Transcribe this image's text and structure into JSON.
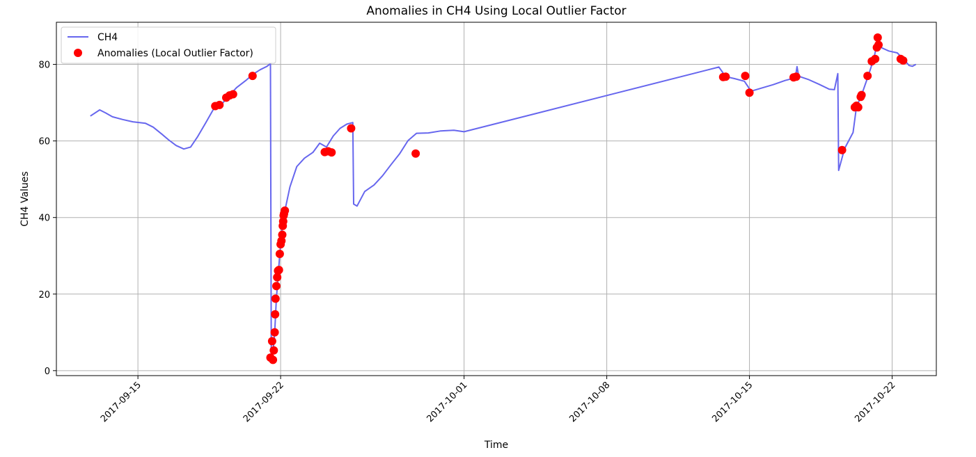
{
  "chart_data": {
    "type": "line",
    "title": "Anomalies in CH4 Using Local Outlier Factor",
    "xlabel": "Time",
    "ylabel": "CH4 Values",
    "xlim": [
      "2017-09-11T00:00",
      "2017-10-24T04:00"
    ],
    "ylim": [
      -1.3,
      91
    ],
    "x_ticks": [
      "2017-09-15",
      "2017-09-22",
      "2017-10-01",
      "2017-10-08",
      "2017-10-15",
      "2017-10-22"
    ],
    "y_ticks": [
      0,
      20,
      40,
      60,
      80
    ],
    "grid": true,
    "legend_position": "top-left",
    "colors": {
      "line": "#6666ee",
      "anomaly": "#ff0000"
    },
    "series": [
      {
        "name": "CH4",
        "type": "line",
        "points": [
          [
            "2017-09-12T16:00",
            66.5
          ],
          [
            "2017-09-13T03:00",
            68.1
          ],
          [
            "2017-09-13T10:00",
            67.3
          ],
          [
            "2017-09-13T18:00",
            66.3
          ],
          [
            "2017-09-14T06:00",
            65.6
          ],
          [
            "2017-09-14T18:00",
            65.0
          ],
          [
            "2017-09-15T09:00",
            64.6
          ],
          [
            "2017-09-15T18:00",
            63.6
          ],
          [
            "2017-09-16T04:00",
            61.8
          ],
          [
            "2017-09-16T12:00",
            60.3
          ],
          [
            "2017-09-16T21:00",
            58.8
          ],
          [
            "2017-09-17T06:00",
            57.9
          ],
          [
            "2017-09-17T14:00",
            58.4
          ],
          [
            "2017-09-17T22:00",
            61.0
          ],
          [
            "2017-09-18T08:00",
            64.8
          ],
          [
            "2017-09-18T17:00",
            68.3
          ],
          [
            "2017-09-19T03:00",
            69.7
          ],
          [
            "2017-09-19T12:00",
            72.0
          ],
          [
            "2017-09-19T20:00",
            73.9
          ],
          [
            "2017-09-20T07:00",
            75.8
          ],
          [
            "2017-09-20T16:00",
            77.5
          ],
          [
            "2017-09-21T00:00",
            78.6
          ],
          [
            "2017-09-21T08:00",
            79.5
          ],
          [
            "2017-09-21T12:00",
            80.2
          ],
          [
            "2017-09-21T13:00",
            3.3
          ],
          [
            "2017-09-21T15:00",
            4.5
          ],
          [
            "2017-09-21T17:00",
            10.0
          ],
          [
            "2017-09-21T19:00",
            18.8
          ],
          [
            "2017-09-21T21:00",
            24.4
          ],
          [
            "2017-09-21T23:00",
            30.5
          ],
          [
            "2017-09-22T02:00",
            37.8
          ],
          [
            "2017-09-22T05:00",
            41.8
          ],
          [
            "2017-09-22T11:00",
            48.0
          ],
          [
            "2017-09-22T19:00",
            53.3
          ],
          [
            "2017-09-23T04:00",
            55.5
          ],
          [
            "2017-09-23T14:00",
            57.0
          ],
          [
            "2017-09-23T22:00",
            59.4
          ],
          [
            "2017-09-24T06:00",
            58.4
          ],
          [
            "2017-09-24T14:00",
            61.3
          ],
          [
            "2017-09-24T22:00",
            63.3
          ],
          [
            "2017-09-25T06:00",
            64.4
          ],
          [
            "2017-09-25T13:00",
            64.8
          ],
          [
            "2017-09-25T14:00",
            43.5
          ],
          [
            "2017-09-25T18:00",
            43.0
          ],
          [
            "2017-09-26T03:00",
            46.8
          ],
          [
            "2017-09-26T14:00",
            48.5
          ],
          [
            "2017-09-27T00:00",
            50.9
          ],
          [
            "2017-09-27T10:00",
            53.8
          ],
          [
            "2017-09-27T20:00",
            56.6
          ],
          [
            "2017-09-28T06:00",
            60.1
          ],
          [
            "2017-09-28T16:00",
            62.0
          ],
          [
            "2017-09-29T06:00",
            62.1
          ],
          [
            "2017-09-29T20:00",
            62.6
          ],
          [
            "2017-09-30T12:00",
            62.8
          ],
          [
            "2017-10-01T00:00",
            62.4
          ],
          [
            "2017-10-13T12:00",
            79.3
          ],
          [
            "2017-10-13T20:00",
            76.8
          ],
          [
            "2017-10-14T06:00",
            76.3
          ],
          [
            "2017-10-14T18:00",
            75.6
          ],
          [
            "2017-10-15T02:00",
            73.0
          ],
          [
            "2017-10-15T14:00",
            73.8
          ],
          [
            "2017-10-16T04:00",
            74.7
          ],
          [
            "2017-10-16T18:00",
            75.8
          ],
          [
            "2017-10-17T06:00",
            76.5
          ],
          [
            "2017-10-17T08:00",
            79.4
          ],
          [
            "2017-10-17T10:00",
            76.9
          ],
          [
            "2017-10-17T22:00",
            76.0
          ],
          [
            "2017-10-18T10:00",
            74.8
          ],
          [
            "2017-10-18T22:00",
            73.5
          ],
          [
            "2017-10-19T04:00",
            73.4
          ],
          [
            "2017-10-19T08:00",
            77.6
          ],
          [
            "2017-10-19T09:00",
            52.3
          ],
          [
            "2017-10-19T16:00",
            58.0
          ],
          [
            "2017-10-20T02:00",
            62.2
          ],
          [
            "2017-10-20T06:00",
            68.9
          ],
          [
            "2017-10-20T12:00",
            72.0
          ],
          [
            "2017-10-20T20:00",
            77.1
          ],
          [
            "2017-10-21T02:00",
            81.2
          ],
          [
            "2017-10-21T06:00",
            85.0
          ],
          [
            "2017-10-21T12:00",
            84.3
          ],
          [
            "2017-10-21T20:00",
            83.5
          ],
          [
            "2017-10-22T06:00",
            83.0
          ],
          [
            "2017-10-22T14:00",
            81.2
          ],
          [
            "2017-10-22T20:00",
            79.7
          ],
          [
            "2017-10-23T00:00",
            79.5
          ],
          [
            "2017-10-23T04:00",
            80.0
          ]
        ]
      },
      {
        "name": "Anomalies (Local Outlier Factor)",
        "type": "scatter",
        "points": [
          [
            "2017-09-18T19:00",
            69.1
          ],
          [
            "2017-09-19T00:00",
            69.4
          ],
          [
            "2017-09-19T08:00",
            71.3
          ],
          [
            "2017-09-19T12:00",
            71.9
          ],
          [
            "2017-09-19T16:00",
            72.2
          ],
          [
            "2017-09-20T15:00",
            77.0
          ],
          [
            "2017-09-21T12:00",
            3.4
          ],
          [
            "2017-09-21T14:00",
            7.7
          ],
          [
            "2017-09-21T15:00",
            2.8
          ],
          [
            "2017-09-21T16:00",
            5.3
          ],
          [
            "2017-09-21T17:00",
            10.0
          ],
          [
            "2017-09-21T17:30",
            14.7
          ],
          [
            "2017-09-21T18:00",
            18.8
          ],
          [
            "2017-09-21T19:00",
            22.1
          ],
          [
            "2017-09-21T20:00",
            24.4
          ],
          [
            "2017-09-21T21:00",
            26.1
          ],
          [
            "2017-09-21T22:00",
            26.3
          ],
          [
            "2017-09-21T23:00",
            30.5
          ],
          [
            "2017-09-22T00:00",
            33.0
          ],
          [
            "2017-09-22T01:00",
            33.9
          ],
          [
            "2017-09-22T02:00",
            35.5
          ],
          [
            "2017-09-22T02:30",
            37.8
          ],
          [
            "2017-09-22T03:00",
            39.0
          ],
          [
            "2017-09-22T03:30",
            40.5
          ],
          [
            "2017-09-22T04:00",
            41.0
          ],
          [
            "2017-09-22T05:00",
            41.8
          ],
          [
            "2017-09-24T04:00",
            57.1
          ],
          [
            "2017-09-24T08:00",
            57.3
          ],
          [
            "2017-09-24T12:00",
            57.0
          ],
          [
            "2017-09-25T11:00",
            63.3
          ],
          [
            "2017-09-28T15:00",
            56.7
          ],
          [
            "2017-10-13T17:00",
            76.7
          ],
          [
            "2017-10-13T20:00",
            76.8
          ],
          [
            "2017-10-14T19:00",
            77.0
          ],
          [
            "2017-10-15T00:00",
            72.6
          ],
          [
            "2017-10-17T04:00",
            76.6
          ],
          [
            "2017-10-17T07:00",
            76.8
          ],
          [
            "2017-10-19T13:00",
            57.6
          ],
          [
            "2017-10-20T04:00",
            68.8
          ],
          [
            "2017-10-20T06:00",
            69.2
          ],
          [
            "2017-10-20T08:00",
            68.8
          ],
          [
            "2017-10-20T11:00",
            71.5
          ],
          [
            "2017-10-20T12:00",
            72.0
          ],
          [
            "2017-10-20T19:00",
            77.0
          ],
          [
            "2017-10-21T00:00",
            80.8
          ],
          [
            "2017-10-21T04:00",
            81.4
          ],
          [
            "2017-10-21T06:00",
            84.4
          ],
          [
            "2017-10-21T08:00",
            85.1
          ],
          [
            "2017-10-21T07:00",
            87.0
          ],
          [
            "2017-10-22T10:00",
            81.4
          ],
          [
            "2017-10-22T13:00",
            81.0
          ]
        ]
      }
    ]
  }
}
